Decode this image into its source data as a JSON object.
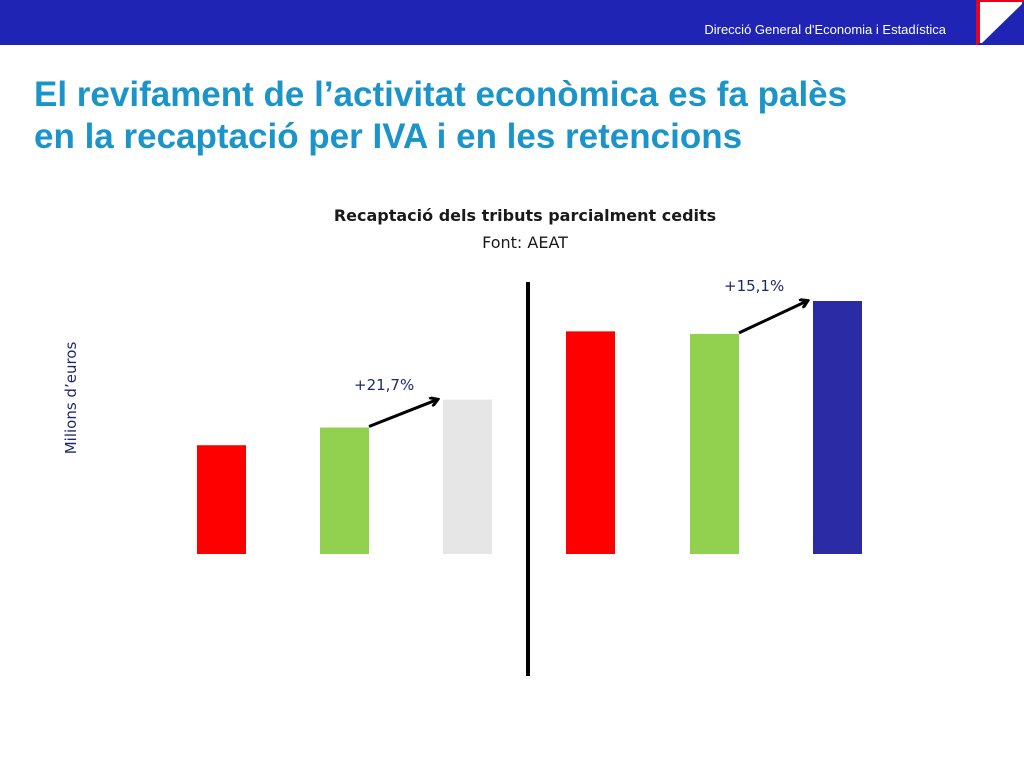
{
  "header": {
    "org_name": "Direcció General d'Economia i Estadística",
    "bar_color": "#1f24b4",
    "corner_color": "#e8001c"
  },
  "slide": {
    "title_line1": "El revifament de l’activitat econòmica es fa palès",
    "title_line2": "en la recaptació per IVA i en les retencions",
    "title_color": "#1b95c9"
  },
  "chart_data": {
    "type": "bar",
    "title": "Recaptació dels tributs parcialment cedits",
    "subtitle": "Font: AEAT",
    "ylabel": "Milions d’euros",
    "xlabel": "",
    "ylim": [
      0,
      100
    ],
    "grid": false,
    "values": [
      43,
      50,
      61,
      88,
      87,
      100
    ],
    "colors": [
      "#ff0000",
      "#92d050",
      "#e6e6e6",
      "#ff0000",
      "#92d050",
      "#2b2ba6"
    ],
    "groups": [
      {
        "bars": [
          0,
          1,
          2
        ],
        "annotation": "+21,7%"
      },
      {
        "bars": [
          3,
          4,
          5
        ],
        "annotation": "+15,1%"
      }
    ],
    "separator": "group-divider",
    "annotations": [
      {
        "text": "+21,7%",
        "from_bar": 1,
        "to_bar": 2
      },
      {
        "text": "+15,1%",
        "from_bar": 4,
        "to_bar": 5
      }
    ]
  }
}
